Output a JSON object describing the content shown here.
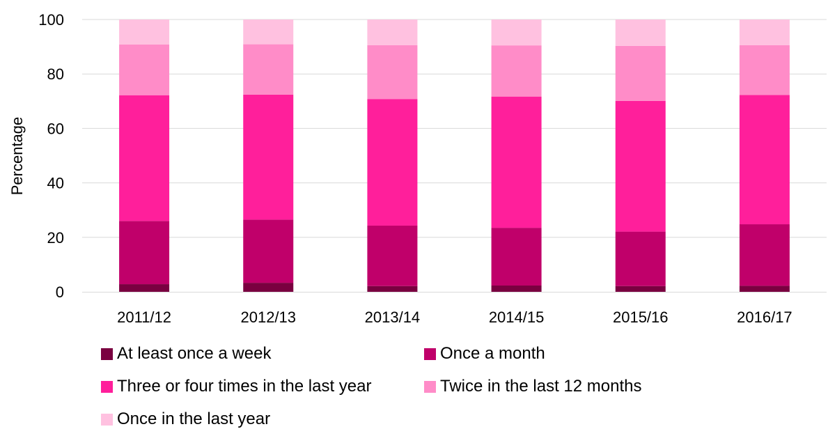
{
  "chart_data": {
    "type": "bar",
    "stacked": true,
    "title": "",
    "xlabel": "",
    "ylabel": "Percentage",
    "ylim": [
      0,
      100
    ],
    "yticks": [
      "0",
      "20",
      "40",
      "60",
      "80",
      "100"
    ],
    "grid": true,
    "legend_position": "bottom",
    "categories": [
      "2011/12",
      "2012/13",
      "2013/14",
      "2014/15",
      "2015/16",
      "2016/17"
    ],
    "series": [
      {
        "name": "At least once a week",
        "color": "#7a0040",
        "values": [
          2.8,
          3.3,
          2.1,
          2.3,
          2.1,
          2.2
        ]
      },
      {
        "name": "Once a month",
        "color": "#c0006a",
        "values": [
          23.2,
          23.2,
          22.2,
          21.2,
          20.0,
          22.6
        ]
      },
      {
        "name": "Three or four times in the last year",
        "color": "#ff1f9b",
        "values": [
          46.2,
          45.9,
          46.5,
          48.2,
          48.0,
          47.5
        ]
      },
      {
        "name": "Twice in the last 12 months",
        "color": "#ff8cc8",
        "values": [
          18.6,
          18.5,
          19.8,
          18.8,
          20.2,
          18.3
        ]
      },
      {
        "name": "Once in the last year",
        "color": "#ffc1e0",
        "values": [
          9.2,
          9.1,
          9.4,
          9.5,
          9.7,
          9.4
        ]
      }
    ]
  }
}
